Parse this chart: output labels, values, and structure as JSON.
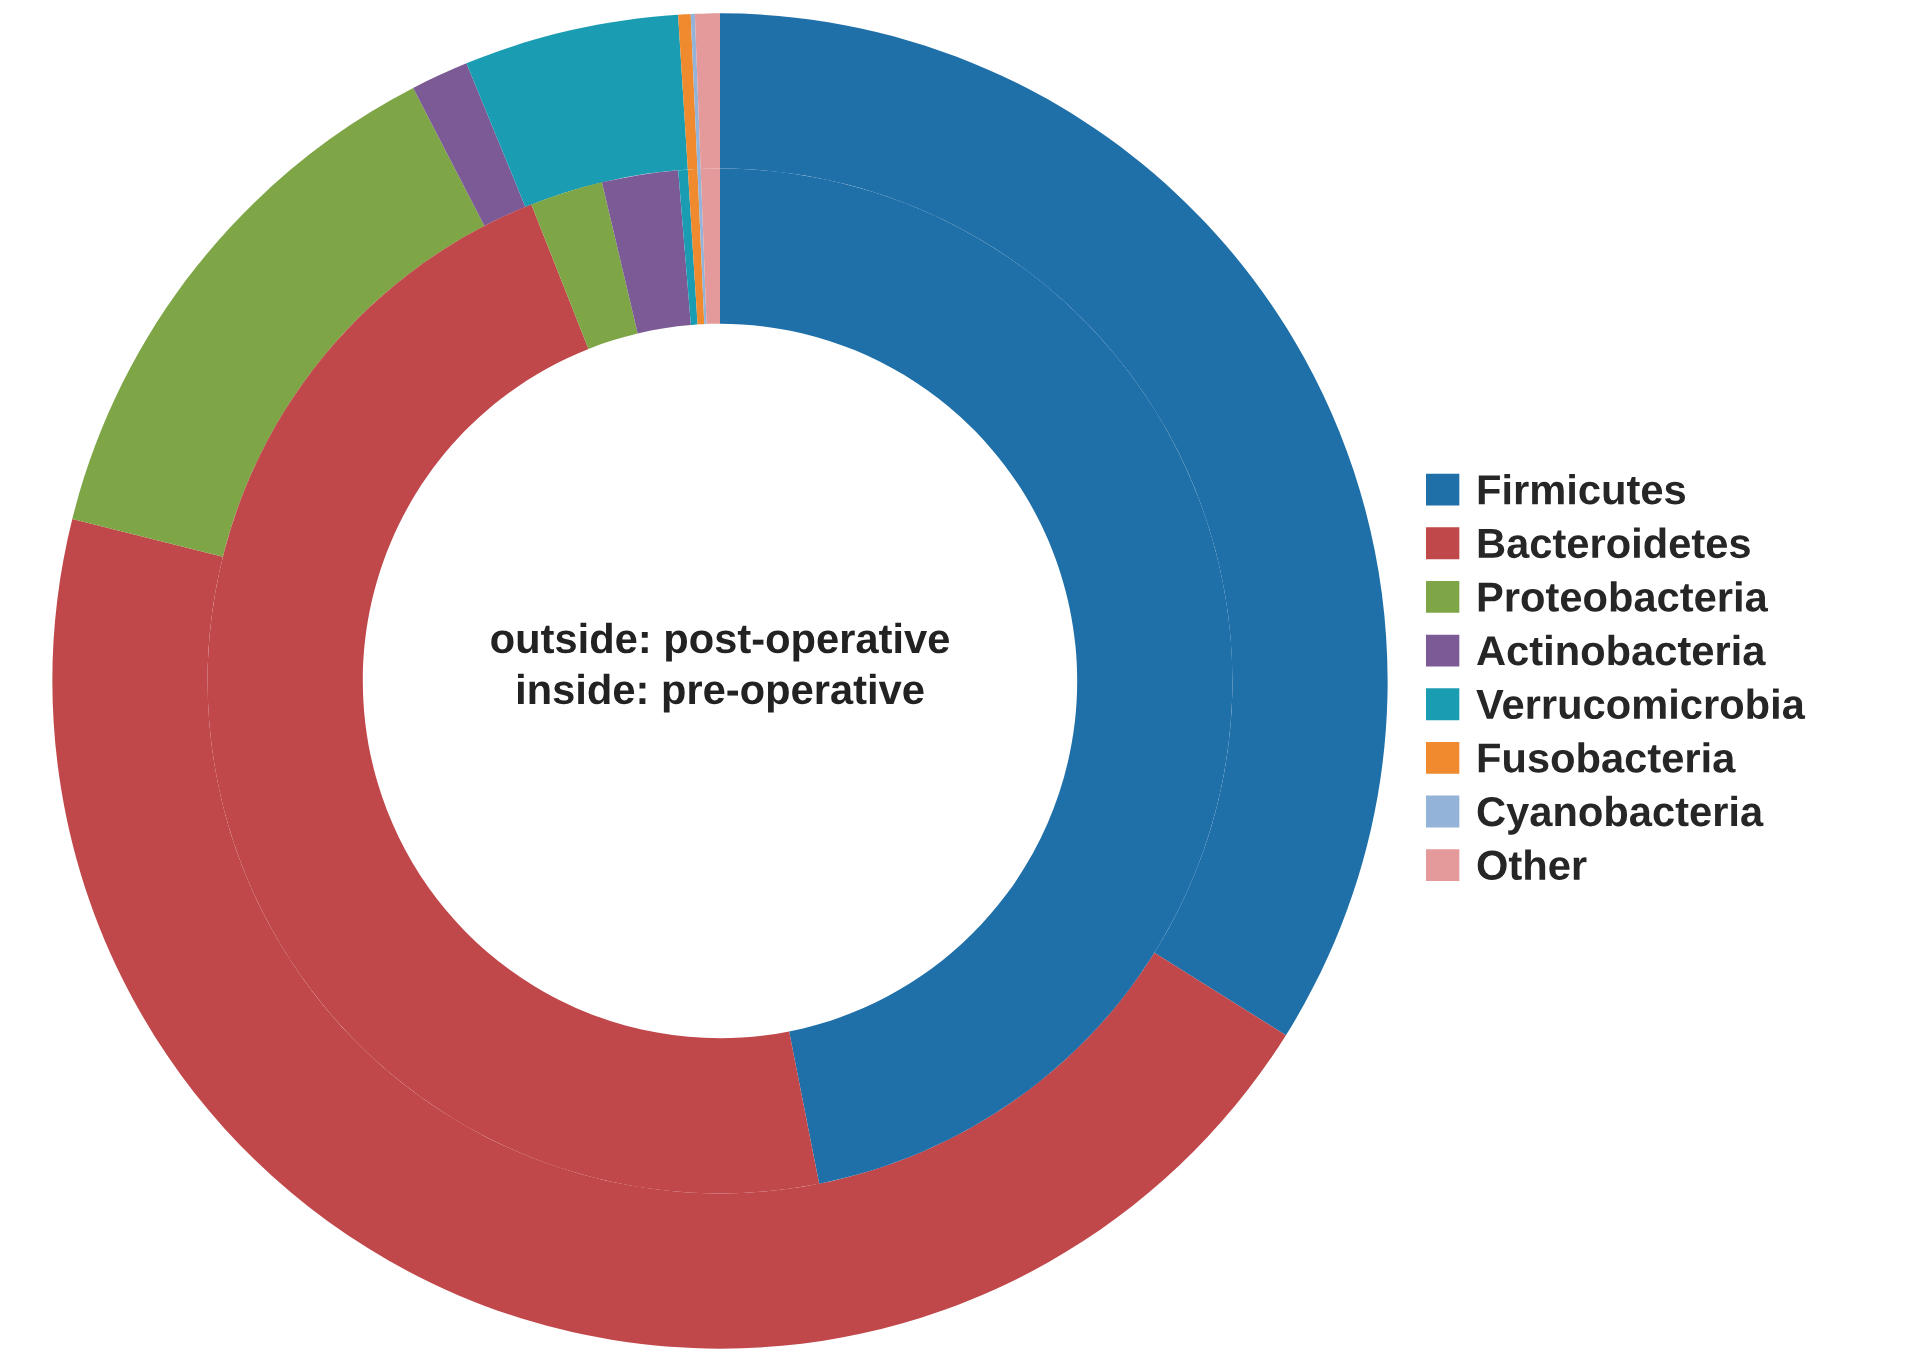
{
  "chart_data": {
    "type": "donut",
    "categories": [
      "Firmicutes",
      "Bacteroidetes",
      "Proteobacteria",
      "Actinobacteria",
      "Verrucomicrobia",
      "Fusobacteria",
      "Cyanobacteria",
      "Other"
    ],
    "colors": [
      "#1f6fa8",
      "#c0474a",
      "#7ea646",
      "#7b5a96",
      "#1a9db2",
      "#f08a2f",
      "#93b3d8",
      "#e49a9a"
    ],
    "series": [
      {
        "values": [
          33.9,
          45.0,
          13.5,
          1.4,
          5.2,
          0.3,
          0.1,
          0.6
        ]
      },
      {
        "values": [
          46.9,
          47.1,
          2.3,
          2.4,
          0.3,
          0.3,
          0.1,
          0.6
        ]
      }
    ],
    "annotations": [
      "outside: post-operative\ninside: pre-operative"
    ],
    "legend": "right"
  }
}
